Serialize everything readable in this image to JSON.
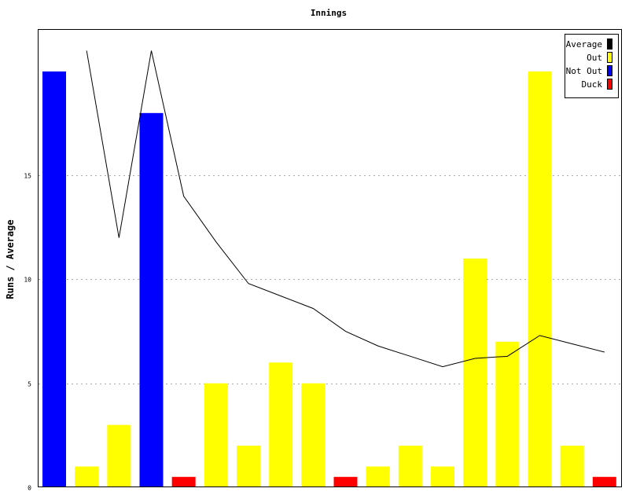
{
  "chart_data": {
    "type": "bar",
    "title": "Innings",
    "xlabel": "",
    "ylabel": "Runs / Average",
    "ylim": [
      0,
      22
    ],
    "yticks": [
      0,
      5,
      10,
      15
    ],
    "grid": true,
    "legend_position": "top-right",
    "legend": [
      {
        "name": "Average",
        "color": "#000000"
      },
      {
        "name": "Out",
        "color": "#ffff00"
      },
      {
        "name": "Not Out",
        "color": "#0000ff"
      },
      {
        "name": "Duck",
        "color": "#ff0000"
      }
    ],
    "bars": [
      {
        "value": 20,
        "status": "Not Out"
      },
      {
        "value": 1,
        "status": "Out"
      },
      {
        "value": 3,
        "status": "Out"
      },
      {
        "value": 18,
        "status": "Not Out"
      },
      {
        "value": 0,
        "status": "Duck"
      },
      {
        "value": 5,
        "status": "Out"
      },
      {
        "value": 2,
        "status": "Out"
      },
      {
        "value": 6,
        "status": "Out"
      },
      {
        "value": 5,
        "status": "Out"
      },
      {
        "value": 0,
        "status": "Duck"
      },
      {
        "value": 1,
        "status": "Out"
      },
      {
        "value": 2,
        "status": "Out"
      },
      {
        "value": 1,
        "status": "Out"
      },
      {
        "value": 11,
        "status": "Out"
      },
      {
        "value": 7,
        "status": "Out"
      },
      {
        "value": 20,
        "status": "Out"
      },
      {
        "value": 2,
        "status": "Out"
      },
      {
        "value": 0,
        "status": "Duck"
      }
    ],
    "average": [
      null,
      21,
      12,
      21,
      14,
      11.8,
      9.8,
      9.2,
      8.6,
      7.5,
      6.8,
      6.3,
      5.8,
      6.2,
      6.3,
      7.3,
      6.9,
      6.5
    ]
  }
}
